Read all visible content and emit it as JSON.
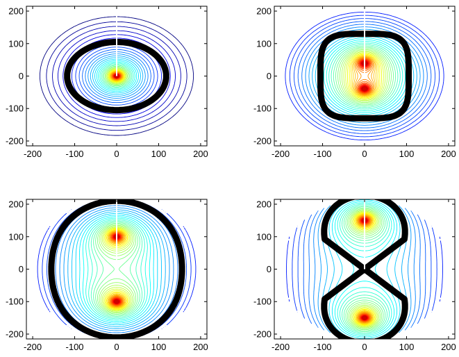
{
  "chart_data": [
    {
      "type": "contour",
      "xlim": [
        -215,
        215
      ],
      "ylim": [
        -215,
        215
      ],
      "xticks": [
        -200,
        -100,
        0,
        100,
        200
      ],
      "yticks": [
        -200,
        -100,
        0,
        100,
        200
      ],
      "xtick_labels": [
        "-200",
        "-100",
        "0",
        "100",
        "200"
      ],
      "ytick_labels": [
        "-200",
        "-100",
        "0",
        "100",
        "200"
      ],
      "sources": [
        [
          0,
          0
        ]
      ],
      "separatrix": "ellipse",
      "separatrix_params": {
        "rx": 118,
        "ry": 105
      },
      "domain_radius": [
        200,
        215
      ],
      "grid": false
    },
    {
      "type": "contour",
      "xlim": [
        -215,
        215
      ],
      "ylim": [
        -215,
        215
      ],
      "xticks": [
        -200,
        -100,
        0,
        100,
        200
      ],
      "yticks": [
        -200,
        -100,
        0,
        100,
        200
      ],
      "xtick_labels": [
        "-200",
        "-100",
        "0",
        "100",
        "200"
      ],
      "ytick_labels": [
        "-200",
        "-100",
        "0",
        "100",
        "200"
      ],
      "sources": [
        [
          0,
          40
        ],
        [
          0,
          -40
        ]
      ],
      "separatrix": "rounded-rect",
      "separatrix_params": {
        "rx": 105,
        "ry": 130,
        "corner": 80
      },
      "domain_radius": [
        200,
        215
      ],
      "grid": false
    },
    {
      "type": "contour",
      "xlim": [
        -215,
        215
      ],
      "ylim": [
        -215,
        215
      ],
      "xticks": [
        -200,
        -100,
        0,
        100,
        200
      ],
      "yticks": [
        -200,
        -100,
        0,
        100,
        200
      ],
      "xtick_labels": [
        "-200",
        "-100",
        "0",
        "100",
        "200"
      ],
      "ytick_labels": [
        "-200",
        "-100",
        "0",
        "100",
        "200"
      ],
      "sources": [
        [
          0,
          100
        ],
        [
          0,
          -100
        ]
      ],
      "separatrix": "peanut",
      "separatrix_params": {
        "a": 100,
        "r": 185
      },
      "domain_radius": [
        200,
        215
      ],
      "grid": false
    },
    {
      "type": "contour",
      "xlim": [
        -215,
        215
      ],
      "ylim": [
        -215,
        215
      ],
      "xticks": [
        -200,
        -100,
        0,
        100,
        200
      ],
      "yticks": [
        -200,
        -100,
        0,
        100,
        200
      ],
      "xtick_labels": [
        "-200",
        "-100",
        "0",
        "100",
        "200"
      ],
      "ytick_labels": [
        "-200",
        "-100",
        "0",
        "100",
        "200"
      ],
      "sources": [
        [
          0,
          150
        ],
        [
          0,
          -150
        ]
      ],
      "separatrix": "two-ovals",
      "separatrix_params": {
        "a": 150,
        "r": 170
      },
      "domain_radius": [
        200,
        215
      ],
      "grid": false
    }
  ]
}
